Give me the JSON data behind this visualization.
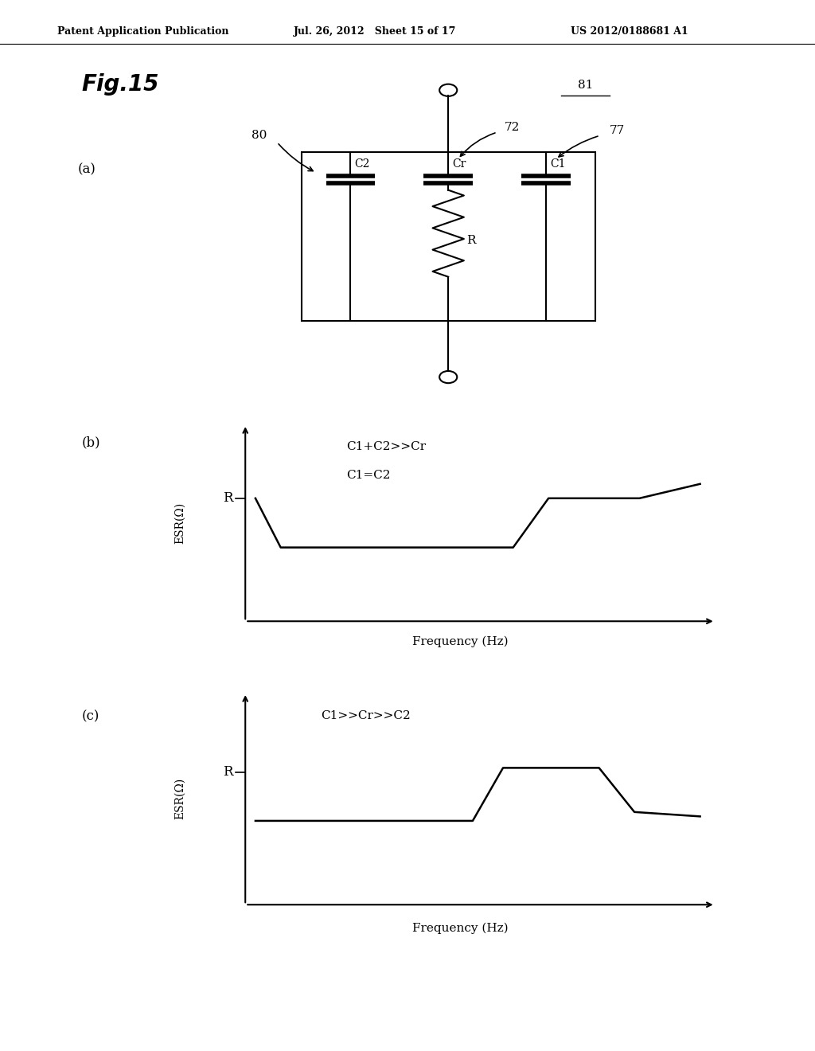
{
  "header_left": "Patent Application Publication",
  "header_mid": "Jul. 26, 2012   Sheet 15 of 17",
  "header_right": "US 2012/0188681 A1",
  "fig_title": "Fig.15",
  "label_a": "(a)",
  "label_b": "(b)",
  "label_c": "(c)",
  "label_80": "80",
  "label_81": "81",
  "label_77": "77",
  "label_72": "72",
  "label_C2": "C2",
  "label_Cr": "Cr",
  "label_C1": "C1",
  "label_R_resistor": "R",
  "ylabel_b": "ESR(Ω)",
  "ylabel_c": "ESR(Ω)",
  "xlabel_b": "Frequency (Hz)",
  "xlabel_c": "Frequency (Hz)",
  "text_b_line1": "C1+C2>>Cr",
  "text_b_line2": "C1=C2",
  "text_c": "C1>>Cr>>C2",
  "r_label": "R",
  "bg_color": "#ffffff",
  "line_color": "#000000"
}
